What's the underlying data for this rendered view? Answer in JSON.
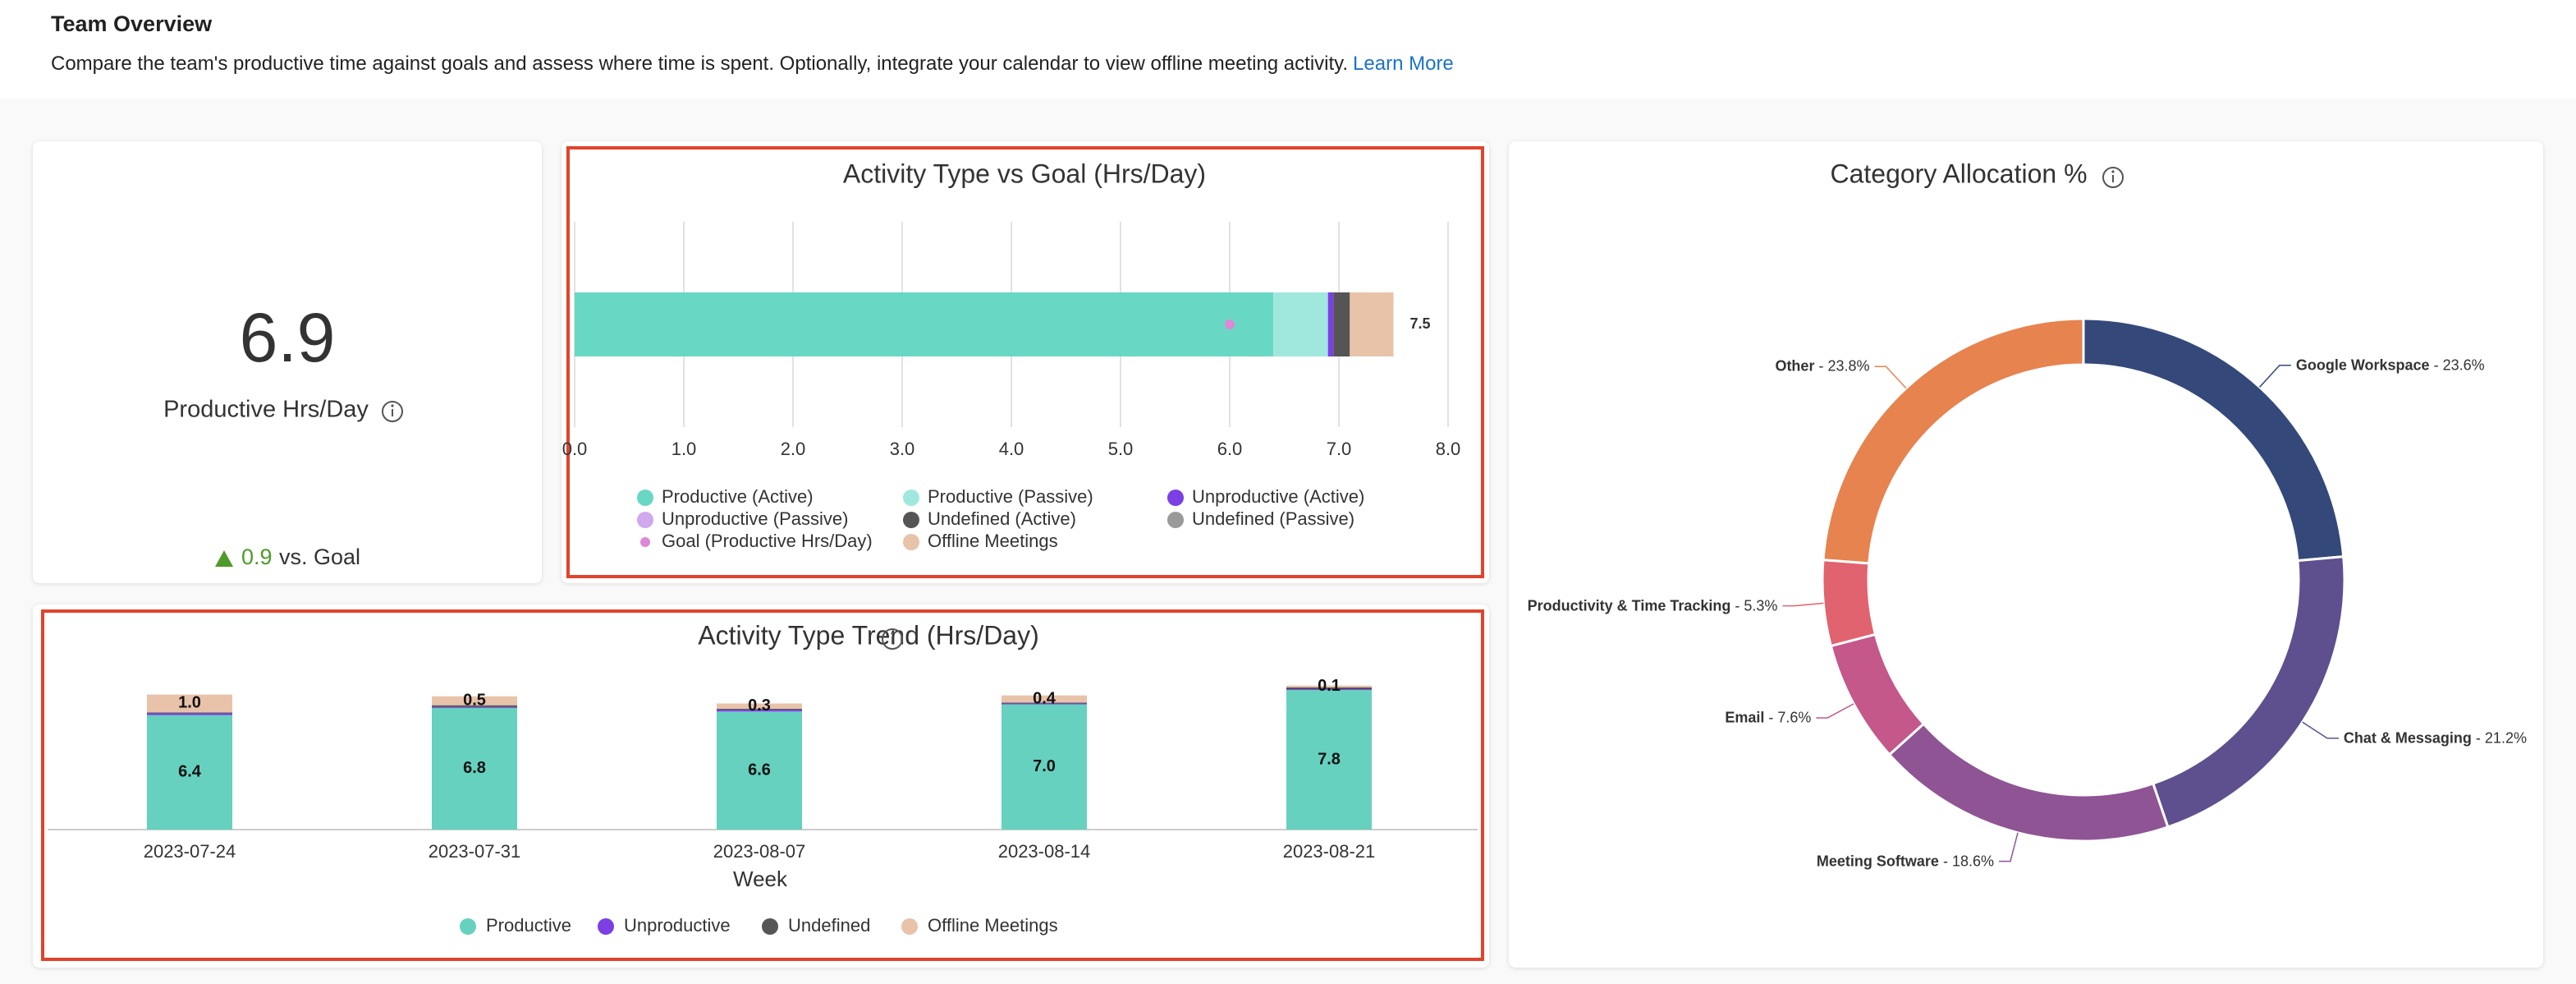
{
  "header": {
    "title": "Team Overview",
    "description": "Compare the team's productive time against goals and assess where time is spent. Optionally, integrate your calendar to view offline meeting activity.",
    "link": "Learn More"
  },
  "kpi": {
    "value": 6.9,
    "label": "Productive Hrs/Day",
    "delta": 0.9,
    "delta_label": "vs. Goal"
  },
  "chart_data": [
    {
      "type": "stacked-hbar",
      "title": "Activity Type vs Goal (Hrs/Day)",
      "series": [
        {
          "name": "Productive (Active)",
          "color": "#68d8c5",
          "values": [
            6.4
          ]
        },
        {
          "name": "Productive (Passive)",
          "color": "#a0e8de",
          "values": [
            0.5
          ]
        },
        {
          "name": "Unproductive (Active)",
          "color": "#7b3fe4",
          "values": [
            0.05
          ]
        },
        {
          "name": "Unproductive (Passive)",
          "color": "#cfa8ee",
          "values": [
            0
          ]
        },
        {
          "name": "Undefined (Active)",
          "color": "#555555",
          "values": [
            0.15
          ]
        },
        {
          "name": "Undefined (Passive)",
          "color": "#9a9a9a",
          "values": [
            0
          ]
        },
        {
          "name": "Offline Meetings",
          "color": "#e8c3aa",
          "values": [
            0.4
          ]
        }
      ],
      "goal": {
        "name": "Goal (Productive Hrs/Day)",
        "color": "#dd88d8",
        "values": [
          6
        ]
      },
      "totals": [
        7.5
      ],
      "xlim": [
        0,
        8
      ],
      "xticks": [
        {
          "value": 0,
          "label": "0.0"
        },
        {
          "value": 1,
          "label": "1.0"
        },
        {
          "value": 2,
          "label": "2.0"
        },
        {
          "value": 3,
          "label": "3.0"
        },
        {
          "value": 4,
          "label": "4.0"
        },
        {
          "value": 5,
          "label": "5.0"
        },
        {
          "value": 6,
          "label": "6.0"
        },
        {
          "value": 7,
          "label": "7.0"
        },
        {
          "value": 8,
          "label": "8.0"
        }
      ],
      "grid": true
    },
    {
      "type": "stacked-bar",
      "title": "Activity Type Trend (Hrs/Day)",
      "x_label": "Week",
      "categories": [
        "2023-07-24",
        "2023-07-31",
        "2023-08-07",
        "2023-08-14",
        "2023-08-21"
      ],
      "series": [
        {
          "name": "Productive",
          "color": "#66d1bf",
          "values": [
            6.4,
            6.8,
            6.6,
            7.0,
            7.8
          ],
          "value_labels": [
            "6.4",
            "6.8",
            "6.6",
            "7.0",
            "7.8"
          ]
        },
        {
          "name": "Unproductive",
          "color": "#7b3fe4",
          "values": [
            0.1,
            0.05,
            0.1,
            0.05,
            0.05
          ]
        },
        {
          "name": "Undefined",
          "color": "#555555",
          "values": [
            0.05,
            0.1,
            0.05,
            0.05,
            0.1
          ]
        },
        {
          "name": "Offline Meetings",
          "color": "#e8c3aa",
          "values": [
            1.0,
            0.5,
            0.3,
            0.4,
            0.1
          ],
          "value_labels": [
            "1.0",
            "0.5",
            "0.3",
            "0.4",
            "0.1"
          ]
        }
      ],
      "ylim": [
        0,
        9
      ]
    },
    {
      "type": "donut",
      "title": "Category Allocation %",
      "categories": [
        "Google Workspace",
        "Chat & Messaging",
        "Meeting Software",
        "Email",
        "Productivity & Time Tracking",
        "Other"
      ],
      "values": [
        23.6,
        21.2,
        18.6,
        7.6,
        5.3,
        23.8
      ],
      "value_labels": [
        "23.6%",
        "21.2%",
        "18.6%",
        "7.6%",
        "5.3%",
        "23.8%"
      ],
      "colors": [
        "#34497a",
        "#5e4f8e",
        "#8f5494",
        "#c4588a",
        "#e0636f",
        "#e6834f"
      ]
    }
  ]
}
